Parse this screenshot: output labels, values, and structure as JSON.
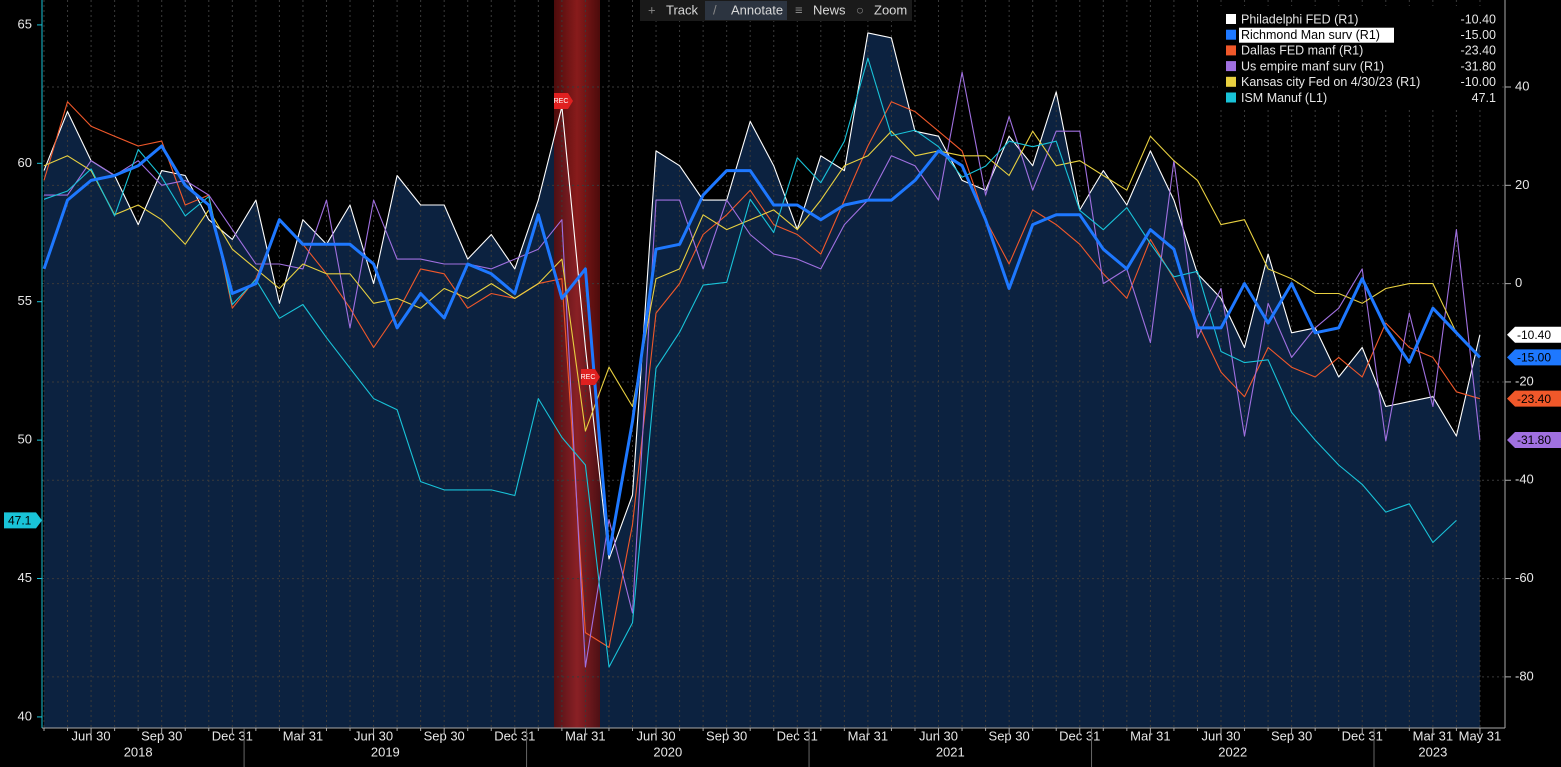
{
  "toolbar": [
    "Track",
    "Annotate",
    "News",
    "Zoom"
  ],
  "chart_data": {
    "type": "line",
    "annotations": [
      "REC",
      "REC"
    ],
    "categories": [
      null,
      null,
      "Jun 30",
      null,
      null,
      "Sep 30",
      null,
      null,
      "Dec 31",
      null,
      null,
      "Mar 31",
      null,
      null,
      "Jun 30",
      null,
      null,
      "Sep 30",
      null,
      null,
      "Dec 31",
      null,
      null,
      "Mar 31",
      null,
      null,
      "Jun 30",
      null,
      null,
      "Sep 30",
      null,
      null,
      "Dec 31",
      null,
      null,
      "Mar 31",
      null,
      null,
      "Jun 30",
      null,
      null,
      "Sep 30",
      null,
      null,
      "Dec 31",
      null,
      null,
      "Mar 31",
      null,
      null,
      "Jun 30",
      null,
      null,
      "Sep 30",
      null,
      null,
      "Dec 31",
      null,
      null,
      "Mar 31",
      null,
      "May 31"
    ],
    "year_labels": [
      "2018",
      "2019",
      "2020",
      "2021",
      "2022",
      "2023"
    ],
    "ylim": [
      39.6,
      65.9
    ],
    "yticks": [
      40,
      45,
      50,
      55,
      60,
      65
    ],
    "y2lim": [
      -90.4,
      57.7
    ],
    "y2ticks": [
      40,
      20,
      0,
      -20,
      -40,
      -60,
      -80
    ],
    "grid": true,
    "series": [
      {
        "name": "Philadelphi FED  (R1)",
        "color": "#ffffff",
        "axis": "y2",
        "fill": true,
        "tag": true,
        "values": [
          23,
          35,
          25,
          22,
          12,
          23,
          22,
          13,
          9,
          17,
          -4,
          13,
          8,
          16,
          0,
          22,
          16,
          16,
          5,
          10,
          3,
          17,
          36,
          -13,
          -56,
          -43,
          27,
          24,
          17,
          17,
          33,
          24,
          11,
          26,
          23,
          51,
          50,
          31,
          30,
          21,
          19,
          30,
          24,
          39,
          15,
          23,
          16,
          27,
          17,
          2,
          -3,
          -13,
          6,
          -10,
          -9,
          -19,
          -13,
          -25,
          -24,
          -23,
          -31,
          -10.4
        ],
        "value_labels": [
          null,
          null,
          null,
          null,
          null,
          null,
          null,
          null,
          null,
          null,
          null,
          null,
          null,
          null,
          null,
          null,
          null,
          null,
          null,
          null,
          null,
          null,
          null,
          null,
          null,
          null,
          null,
          null,
          null,
          null,
          null,
          null,
          null,
          null,
          null,
          null,
          null,
          null,
          null,
          null,
          null,
          null,
          null,
          null,
          null,
          null,
          null,
          null,
          null,
          null,
          null,
          null,
          null,
          null,
          null,
          null,
          null,
          null,
          null,
          null,
          null,
          "-10.40"
        ]
      },
      {
        "name": "Richmond Man surv (R1)",
        "color": "#1e78ff",
        "axis": "y2",
        "width": 3,
        "tag": true,
        "highlight": true,
        "values": [
          3,
          17,
          21,
          22,
          24,
          28,
          20,
          16,
          -2,
          0,
          13,
          8,
          8,
          8,
          4,
          -9,
          -2,
          -7,
          4,
          2,
          -2,
          14,
          -3,
          3,
          -55,
          -28,
          7,
          8,
          18,
          23,
          23,
          16,
          16,
          13,
          16,
          17,
          17,
          21,
          27,
          24,
          13,
          -1,
          12,
          14,
          14,
          7,
          3,
          11,
          7,
          -9,
          -9,
          0,
          -8,
          0,
          -10,
          -9,
          1,
          -9,
          -16,
          -5,
          -10,
          -15
        ],
        "value_labels": [
          null,
          null,
          null,
          null,
          null,
          null,
          null,
          null,
          null,
          null,
          null,
          null,
          null,
          null,
          null,
          null,
          null,
          null,
          null,
          null,
          null,
          null,
          null,
          null,
          null,
          null,
          null,
          null,
          null,
          null,
          null,
          null,
          null,
          null,
          null,
          null,
          null,
          null,
          null,
          null,
          null,
          null,
          null,
          null,
          null,
          null,
          null,
          null,
          null,
          null,
          null,
          null,
          null,
          null,
          null,
          null,
          null,
          null,
          null,
          null,
          null,
          "-15.00"
        ]
      },
      {
        "name": "Dallas FED manf (R1)",
        "color": "#f0582a",
        "axis": "y2",
        "tag": true,
        "values": [
          21,
          37,
          32,
          30,
          28,
          29,
          16,
          18,
          -5,
          1,
          13,
          8,
          2,
          -5,
          -13,
          -6,
          3,
          2,
          -5,
          -2,
          -3,
          0,
          1,
          -71,
          -74,
          -49,
          -6,
          0,
          10,
          14,
          19,
          12,
          10,
          6,
          17,
          28,
          37,
          35,
          31,
          27,
          13,
          4,
          15,
          12,
          8,
          2,
          -3,
          9,
          1,
          -8,
          -18,
          -23,
          -13,
          -17,
          -19,
          -15,
          -19,
          -8,
          -13,
          -15,
          -22,
          -23.4
        ],
        "value_labels": [
          null,
          null,
          null,
          null,
          null,
          null,
          null,
          null,
          null,
          null,
          null,
          null,
          null,
          null,
          null,
          null,
          null,
          null,
          null,
          null,
          null,
          null,
          null,
          null,
          null,
          null,
          null,
          null,
          null,
          null,
          null,
          null,
          null,
          null,
          null,
          null,
          null,
          null,
          null,
          null,
          null,
          null,
          null,
          null,
          null,
          null,
          null,
          null,
          null,
          null,
          null,
          null,
          null,
          null,
          null,
          null,
          null,
          null,
          null,
          null,
          null,
          "-23.40"
        ]
      },
      {
        "name": "Us empire manf surv (R1)",
        "color": "#a070e0",
        "axis": "y2",
        "tag": true,
        "values": [
          18,
          18,
          25,
          22,
          25,
          20,
          21,
          18,
          11,
          4,
          4,
          3,
          17,
          -9,
          17,
          5,
          5,
          4,
          4,
          3,
          5,
          7,
          13,
          -78,
          -48,
          -67,
          17,
          17,
          3,
          17,
          10,
          6,
          5,
          3,
          12,
          17,
          26,
          24,
          17,
          43,
          18,
          34,
          19,
          31,
          31,
          0,
          3,
          -12,
          25,
          -11,
          -1,
          -31,
          -4,
          -15,
          -9,
          -5,
          3,
          -32,
          -6,
          -25,
          11,
          -31.8
        ],
        "value_labels": [
          null,
          null,
          null,
          null,
          null,
          null,
          null,
          null,
          null,
          null,
          null,
          null,
          null,
          null,
          null,
          null,
          null,
          null,
          null,
          null,
          null,
          null,
          null,
          null,
          null,
          null,
          null,
          null,
          null,
          null,
          null,
          null,
          null,
          null,
          null,
          null,
          null,
          null,
          null,
          null,
          null,
          null,
          null,
          null,
          null,
          null,
          null,
          null,
          null,
          null,
          null,
          null,
          null,
          null,
          null,
          null,
          null,
          null,
          null,
          null,
          null,
          "-31.80"
        ]
      },
      {
        "name": "Kansas city Fed  on 4/30/23 (R1)",
        "color": "#e8d040",
        "axis": "y2",
        "tag": false,
        "values": [
          24,
          26,
          23,
          14,
          16,
          13,
          8,
          15,
          7,
          3,
          -1,
          4,
          2,
          2,
          -4,
          -3,
          -5,
          -1,
          -3,
          0,
          -3,
          0,
          5,
          -30,
          -17,
          -25,
          1,
          3,
          14,
          11,
          13,
          15,
          11,
          17,
          24,
          26,
          31,
          26,
          27,
          26,
          26,
          22,
          31,
          24,
          25,
          22,
          19,
          30,
          25,
          21,
          12,
          13,
          3,
          1,
          -2,
          -2,
          -4,
          -1,
          0,
          0,
          -10,
          null
        ],
        "value_labels": [
          null,
          null,
          null,
          null,
          null,
          null,
          null,
          null,
          null,
          null,
          null,
          null,
          null,
          null,
          null,
          null,
          null,
          null,
          null,
          null,
          null,
          null,
          null,
          null,
          null,
          null,
          null,
          null,
          null,
          null,
          null,
          null,
          null,
          null,
          null,
          null,
          null,
          null,
          null,
          null,
          null,
          null,
          null,
          null,
          null,
          null,
          null,
          null,
          null,
          null,
          null,
          null,
          null,
          null,
          null,
          null,
          null,
          null,
          null,
          null,
          "-10.00",
          null
        ]
      },
      {
        "name": "ISM Manuf (L1)",
        "color": "#19c3d8",
        "axis": "y",
        "tag": true,
        "values": [
          58.7,
          59.0,
          59.8,
          58.1,
          60.5,
          59.5,
          58.1,
          58.8,
          54.9,
          55.8,
          54.4,
          54.9,
          53.7,
          52.6,
          51.5,
          51.1,
          48.5,
          48.2,
          48.2,
          48.2,
          48.0,
          51.5,
          50.1,
          49.1,
          41.8,
          43.4,
          52.6,
          53.9,
          55.6,
          55.7,
          58.7,
          57.5,
          60.2,
          59.3,
          60.8,
          63.8,
          61.0,
          61.2,
          60.6,
          59.5,
          59.9,
          60.8,
          60.6,
          60.8,
          58.3,
          57.6,
          58.4,
          57.1,
          55.9,
          56.1,
          53.2,
          52.8,
          52.9,
          51.0,
          50.0,
          49.1,
          48.4,
          47.4,
          47.7,
          46.3,
          47.1,
          null
        ],
        "value_labels": [
          null,
          null,
          null,
          null,
          null,
          null,
          null,
          null,
          null,
          null,
          null,
          null,
          null,
          null,
          null,
          null,
          null,
          null,
          null,
          null,
          null,
          null,
          null,
          null,
          null,
          null,
          null,
          null,
          null,
          null,
          null,
          null,
          null,
          null,
          null,
          null,
          null,
          null,
          null,
          null,
          null,
          null,
          null,
          null,
          null,
          null,
          null,
          null,
          null,
          null,
          null,
          null,
          null,
          null,
          null,
          null,
          null,
          null,
          null,
          null,
          "47.1",
          null
        ]
      }
    ]
  }
}
